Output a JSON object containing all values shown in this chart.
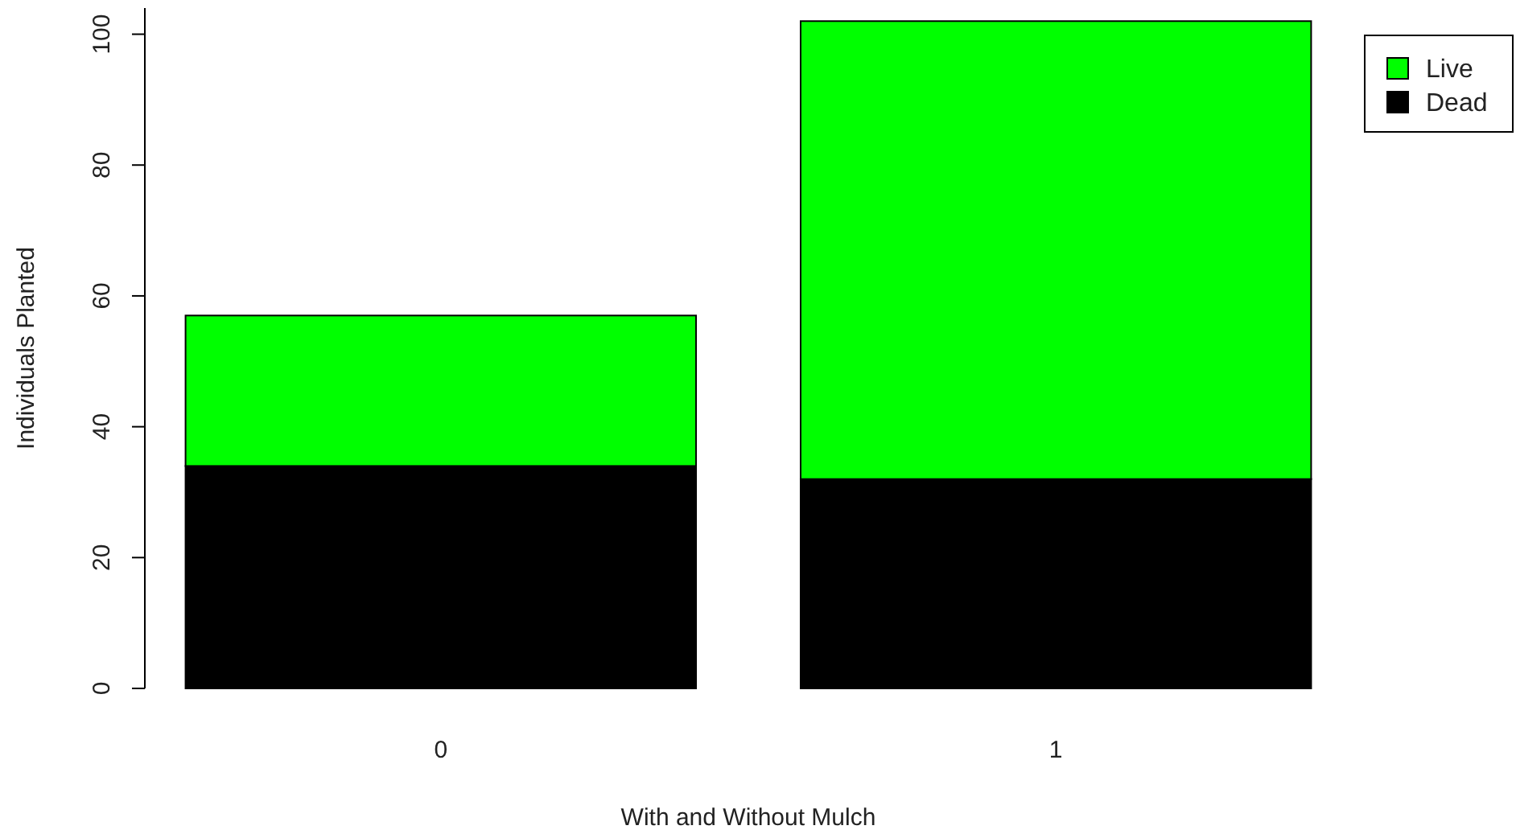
{
  "chart_data": {
    "type": "bar",
    "stacked": true,
    "xlabel": "With and Without Mulch",
    "ylabel": "Individuals Planted",
    "categories": [
      "0",
      "1"
    ],
    "series": [
      {
        "name": "Dead",
        "color": "#000000",
        "values": [
          34,
          32
        ]
      },
      {
        "name": "Live",
        "color": "#00ff00",
        "values": [
          23,
          70
        ]
      }
    ],
    "ylim": [
      0,
      104
    ],
    "yticks": [
      0,
      20,
      40,
      60,
      80,
      100
    ],
    "grid": false,
    "legend": "top right"
  }
}
